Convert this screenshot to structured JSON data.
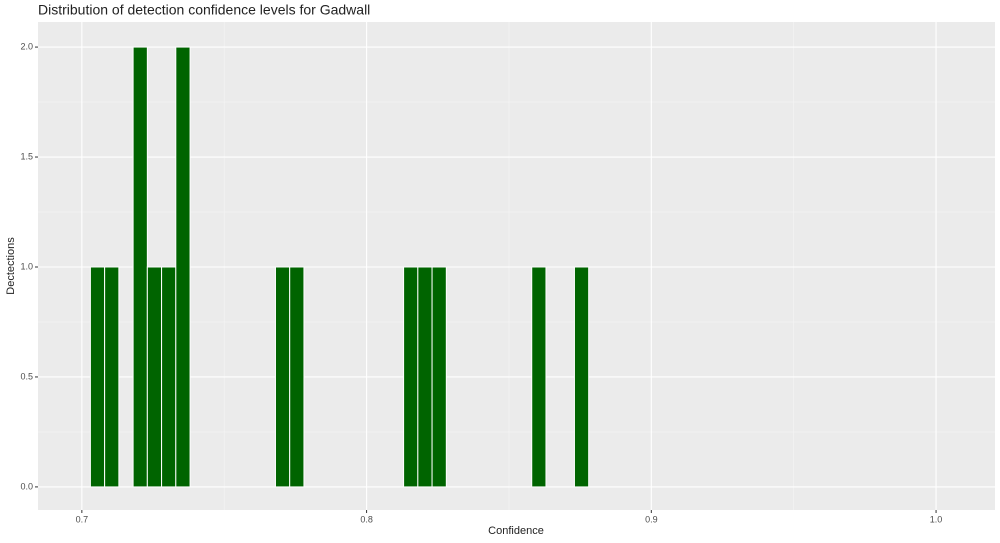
{
  "chart_data": {
    "type": "histogram",
    "title": "Distribution of detection confidence levels for Gadwall",
    "x_label": "Confidence",
    "y_label": "Dectections",
    "color": "#006400",
    "grid": true,
    "bins": [
      0.703,
      0.708,
      0.713,
      0.718,
      0.723,
      0.728,
      0.733,
      0.738,
      0.743,
      0.748,
      0.753,
      0.758,
      0.763,
      0.768,
      0.773,
      0.778,
      0.783,
      0.788,
      0.793,
      0.798,
      0.803,
      0.808,
      0.813,
      0.818,
      0.823,
      0.828,
      0.833,
      0.838,
      0.843,
      0.848,
      0.853,
      0.858,
      0.863,
      0.868,
      0.873,
      0.878
    ],
    "values": [
      1,
      1,
      0,
      2,
      1,
      1,
      2,
      0,
      0,
      0,
      0,
      0,
      0,
      1,
      1,
      0,
      0,
      0,
      0,
      0,
      0,
      0,
      1,
      1,
      1,
      0,
      0,
      0,
      0,
      0,
      0,
      1,
      0,
      0,
      1
    ],
    "xlim": [
      0.6846,
      1.0207
    ],
    "xticks": [
      0.7,
      0.8,
      0.9,
      {
        "value": 1.0,
        "label": "1.0"
      }
    ],
    "ylim": [
      -0.105,
      2.114
    ],
    "yticks": [
      {
        "value": 0,
        "label": "0.0"
      },
      0.5,
      {
        "value": 1.0,
        "label": "1.0"
      },
      1.5,
      {
        "value": 2.0,
        "label": "2.0"
      }
    ]
  }
}
